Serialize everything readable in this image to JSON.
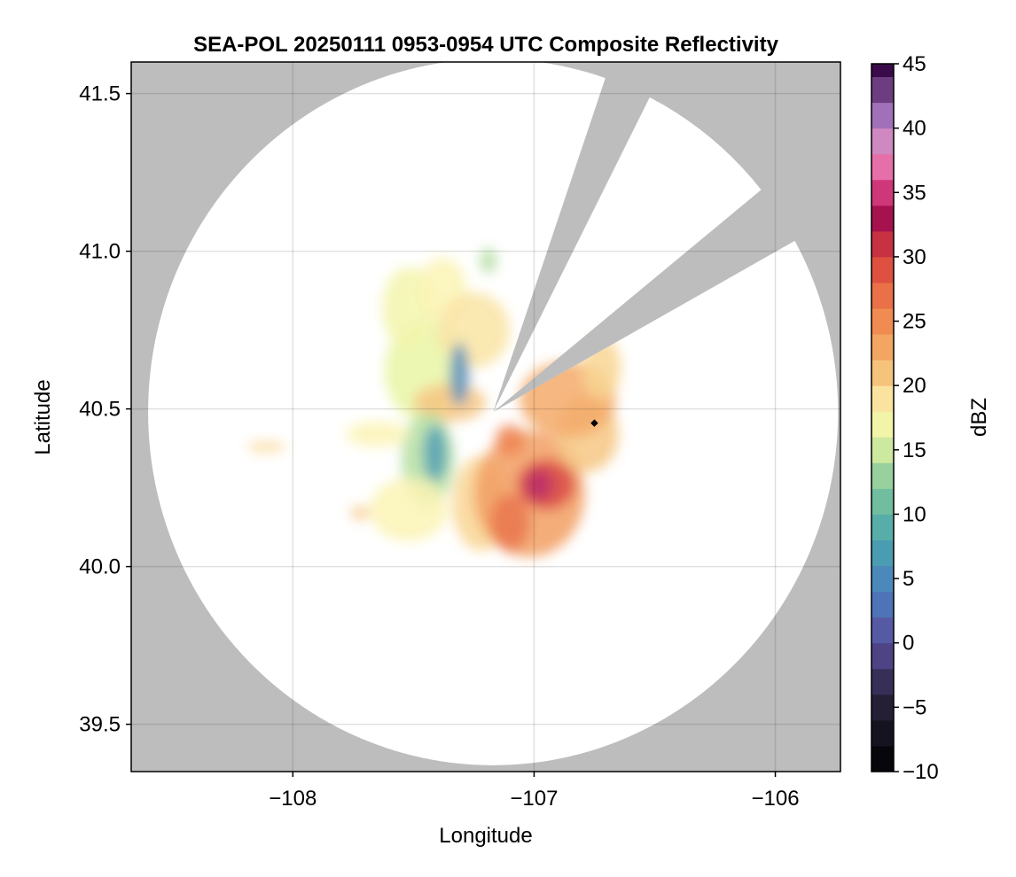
{
  "chart_data": {
    "type": "heatmap",
    "title": "SEA-POL 20250111 0953-0954 UTC Composite Reflectivity",
    "xlabel": "Longitude",
    "ylabel": "Latitude",
    "xlim": [
      -108.67,
      -105.73
    ],
    "ylim": [
      39.35,
      41.6
    ],
    "x_ticks": [
      -108,
      -107,
      -106
    ],
    "x_tick_labels": [
      "−108",
      "−107",
      "−106"
    ],
    "y_ticks": [
      39.5,
      40.0,
      40.5,
      41.0,
      41.5
    ],
    "y_tick_labels": [
      "39.5",
      "40.0",
      "40.5",
      "41.0",
      "41.5"
    ],
    "grid": true,
    "background_color": "#bdbdbd",
    "coverage_color": "#ffffff",
    "radar": {
      "center": [
        -107.17,
        40.49
      ],
      "range_lon": 1.43,
      "range_lat": 1.12,
      "blocked_sectors_deg_from_north": [
        [
          19,
          27
        ],
        [
          51,
          61
        ]
      ]
    },
    "colorbar": {
      "label": "dBZ",
      "min": -10,
      "max": 45,
      "step": 2,
      "ticks": [
        -10,
        -5,
        0,
        5,
        10,
        15,
        20,
        25,
        30,
        35,
        40,
        45
      ],
      "tick_labels": [
        "−10",
        "−5",
        "0",
        "5",
        "10",
        "15",
        "20",
        "25",
        "30",
        "35",
        "40",
        "45"
      ],
      "stops": [
        [
          -10,
          "#000000"
        ],
        [
          -4,
          "#2b2540"
        ],
        [
          0,
          "#5a4d9c"
        ],
        [
          4,
          "#4b7fc0"
        ],
        [
          8,
          "#4aa6ad"
        ],
        [
          12,
          "#7cc59c"
        ],
        [
          16,
          "#e8f4a0"
        ],
        [
          18,
          "#fbf3b0"
        ],
        [
          22,
          "#f4b36a"
        ],
        [
          26,
          "#ee7f4a"
        ],
        [
          30,
          "#d8413c"
        ],
        [
          33,
          "#a5124d"
        ],
        [
          36,
          "#e24a8e"
        ],
        [
          38,
          "#e894c4"
        ],
        [
          41,
          "#a070b8"
        ],
        [
          45,
          "#3a0a4a"
        ]
      ]
    },
    "echo_regions": [
      {
        "center": [
          -107.45,
          40.62
        ],
        "radii": [
          0.17,
          0.16
        ],
        "value": 16
      },
      {
        "center": [
          -107.52,
          40.82
        ],
        "radii": [
          0.11,
          0.13
        ],
        "value": 17
      },
      {
        "center": [
          -107.38,
          40.88
        ],
        "radii": [
          0.1,
          0.1
        ],
        "value": 18
      },
      {
        "center": [
          -107.25,
          40.75
        ],
        "radii": [
          0.15,
          0.12
        ],
        "value": 19
      },
      {
        "center": [
          -107.35,
          40.52
        ],
        "radii": [
          0.15,
          0.06
        ],
        "value": 21
      },
      {
        "center": [
          -107.44,
          40.34
        ],
        "radii": [
          0.11,
          0.15
        ],
        "value": 14
      },
      {
        "center": [
          -107.52,
          40.18
        ],
        "radii": [
          0.16,
          0.1
        ],
        "value": 18
      },
      {
        "center": [
          -107.22,
          40.2
        ],
        "radii": [
          0.12,
          0.15
        ],
        "value": 20
      },
      {
        "center": [
          -107.02,
          40.23
        ],
        "radii": [
          0.23,
          0.2
        ],
        "value": 24
      },
      {
        "center": [
          -106.78,
          40.42
        ],
        "radii": [
          0.13,
          0.12
        ],
        "value": 21
      },
      {
        "center": [
          -106.86,
          40.53
        ],
        "radii": [
          0.2,
          0.12
        ],
        "value": 23
      },
      {
        "center": [
          -106.72,
          40.63
        ],
        "radii": [
          0.08,
          0.1
        ],
        "value": 20
      },
      {
        "center": [
          -106.95,
          40.26
        ],
        "radii": [
          0.12,
          0.08
        ],
        "value": 30
      },
      {
        "center": [
          -106.98,
          40.26
        ],
        "radii": [
          0.06,
          0.05
        ],
        "value": 34
      },
      {
        "center": [
          -107.1,
          40.14
        ],
        "radii": [
          0.08,
          0.09
        ],
        "value": 27
      },
      {
        "center": [
          -107.1,
          40.4
        ],
        "radii": [
          0.06,
          0.05
        ],
        "value": 26
      },
      {
        "center": [
          -107.31,
          40.61
        ],
        "radii": [
          0.04,
          0.1
        ],
        "value": 5
      },
      {
        "center": [
          -107.41,
          40.36
        ],
        "radii": [
          0.05,
          0.09
        ],
        "value": 7
      },
      {
        "center": [
          -107.65,
          40.42
        ],
        "radii": [
          0.13,
          0.04
        ],
        "value": 18
      },
      {
        "center": [
          -108.11,
          40.38
        ],
        "radii": [
          0.08,
          0.015
        ],
        "value": 20
      },
      {
        "center": [
          -107.72,
          40.17
        ],
        "radii": [
          0.04,
          0.02
        ],
        "value": 21
      },
      {
        "center": [
          -107.19,
          40.97
        ],
        "radii": [
          0.035,
          0.04
        ],
        "value": 14
      }
    ]
  }
}
